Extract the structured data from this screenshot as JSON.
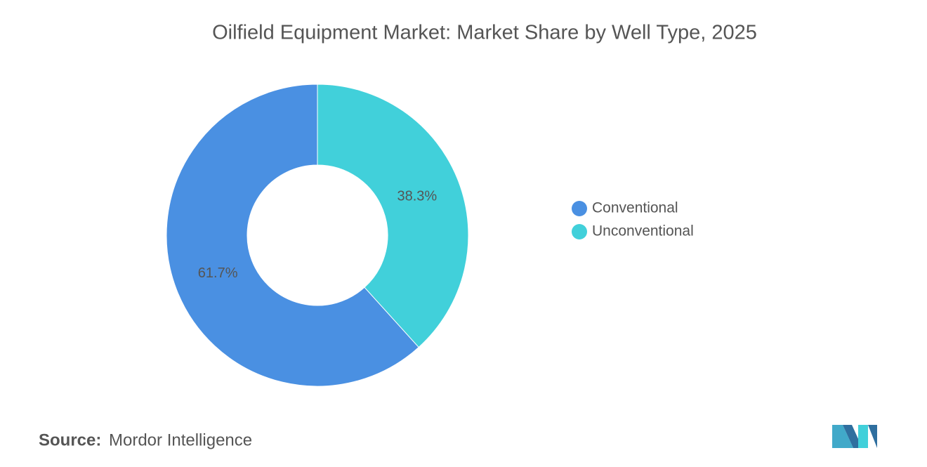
{
  "chart_data": {
    "type": "pie",
    "donut": true,
    "title": "Oilfield Equipment Market: Market Share by Well Type, 2025",
    "categories": [
      "Conventional",
      "Unconventional"
    ],
    "values": [
      61.7,
      38.3
    ],
    "value_labels": [
      "61.7%",
      "38.3%"
    ],
    "colors": [
      "#4a90e2",
      "#41d0da"
    ],
    "legend": "right"
  },
  "footer": {
    "source_label": "Source:",
    "source": "Mordor Intelligence"
  }
}
